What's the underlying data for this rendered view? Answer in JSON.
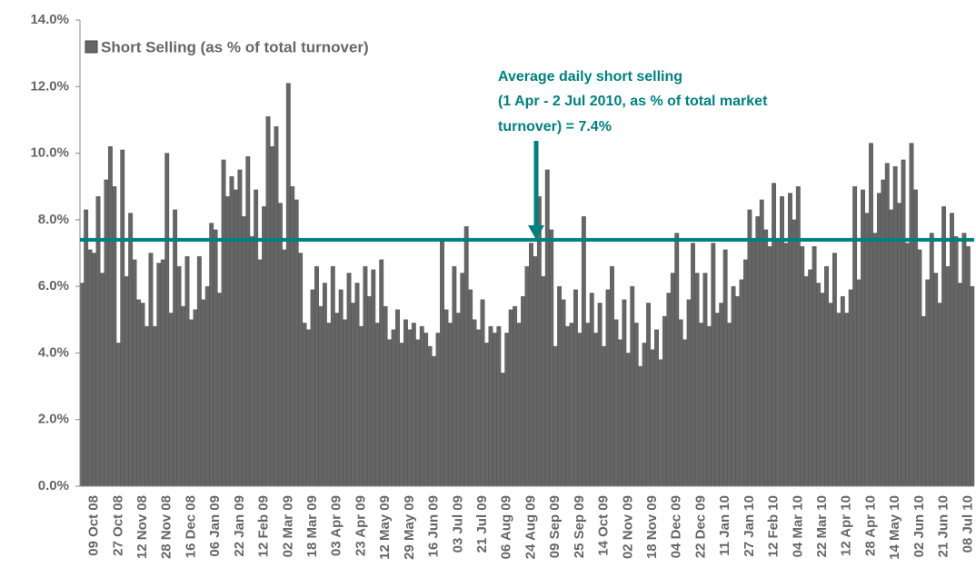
{
  "chart_data": {
    "type": "bar",
    "legend": "Short Selling (as % of total turnover)",
    "color": "#666666",
    "annotation": [
      "Average daily short selling",
      "(1 Apr - 2 Jul 2010, as % of total market",
      "turnover) = 7.4%"
    ],
    "average": 7.4,
    "average_color": "#008080",
    "ylim": [
      0,
      14
    ],
    "yticks": [
      {
        "value": 0,
        "label": "0.0%"
      },
      {
        "value": 2,
        "label": "2.0%"
      },
      {
        "value": 4,
        "label": "4.0%"
      },
      {
        "value": 6,
        "label": "6.0%"
      },
      {
        "value": 8,
        "label": "8.0%"
      },
      {
        "value": 10,
        "label": "10.0%"
      },
      {
        "value": 12,
        "label": "12.0%"
      },
      {
        "value": 14,
        "label": "14.0%"
      }
    ],
    "categories": [
      null,
      null,
      null,
      "09 Oct 08",
      null,
      null,
      null,
      null,
      null,
      "27 Oct 08",
      null,
      null,
      null,
      null,
      null,
      "12 Nov 08",
      null,
      null,
      null,
      null,
      null,
      "28 Nov 08",
      null,
      null,
      null,
      null,
      null,
      "16 Dec 08",
      null,
      null,
      null,
      null,
      null,
      "06 Jan 09",
      null,
      null,
      null,
      null,
      null,
      "22 Jan 09",
      null,
      null,
      null,
      null,
      null,
      "12 Feb 09",
      null,
      null,
      null,
      null,
      null,
      "02 Mar 09",
      null,
      null,
      null,
      null,
      null,
      "18 Mar 09",
      null,
      null,
      null,
      null,
      null,
      "03 Apr 09",
      null,
      null,
      null,
      null,
      null,
      "23 Apr 09",
      null,
      null,
      null,
      null,
      null,
      "12 May 09",
      null,
      null,
      null,
      null,
      null,
      "29 May 09",
      null,
      null,
      null,
      null,
      null,
      "16 Jun 09",
      null,
      null,
      null,
      null,
      null,
      "03 Jul 09",
      null,
      null,
      null,
      null,
      null,
      "21 Jul 09",
      null,
      null,
      null,
      null,
      null,
      "06 Aug 09",
      null,
      null,
      null,
      null,
      null,
      "24 Aug 09",
      null,
      null,
      null,
      null,
      null,
      "09 Sep 09",
      null,
      null,
      null,
      null,
      null,
      "25 Sep 09",
      null,
      null,
      null,
      null,
      null,
      "14 Oct 09",
      null,
      null,
      null,
      null,
      null,
      "02 Nov 09",
      null,
      null,
      null,
      null,
      null,
      "18 Nov 09",
      null,
      null,
      null,
      null,
      null,
      "04 Dec 09",
      null,
      null,
      null,
      null,
      null,
      "22 Dec 09",
      null,
      null,
      null,
      null,
      null,
      "11 Jan 10",
      null,
      null,
      null,
      null,
      null,
      "27 Jan 10",
      null,
      null,
      null,
      null,
      null,
      "12 Feb 10",
      null,
      null,
      null,
      null,
      null,
      "04 Mar 10",
      null,
      null,
      null,
      null,
      null,
      "22 Mar 10",
      null,
      null,
      null,
      null,
      null,
      "12 Apr 10",
      null,
      null,
      null,
      null,
      null,
      "28 Apr 10",
      null,
      null,
      null,
      null,
      null,
      "14 May 10",
      null,
      null,
      null,
      null,
      null,
      "02 Jun 10",
      null,
      null,
      null,
      null,
      null,
      "21 Jun 10",
      null,
      null,
      null,
      null,
      null,
      "08 Jul 10",
      null
    ],
    "values": [
      6.1,
      8.3,
      7.1,
      7.0,
      8.7,
      6.4,
      9.2,
      10.2,
      9.0,
      4.3,
      10.1,
      6.3,
      8.2,
      6.8,
      5.6,
      5.5,
      4.8,
      7.0,
      4.8,
      6.7,
      6.8,
      10.0,
      5.2,
      8.3,
      6.6,
      5.4,
      6.9,
      5.0,
      5.3,
      6.9,
      5.6,
      6.0,
      7.9,
      7.7,
      5.8,
      9.8,
      8.7,
      9.3,
      8.9,
      9.5,
      8.1,
      9.9,
      7.5,
      8.9,
      6.8,
      8.4,
      11.1,
      10.2,
      10.8,
      8.5,
      7.1,
      12.1,
      9.0,
      8.6,
      7.0,
      4.9,
      4.7,
      5.9,
      6.6,
      5.4,
      6.1,
      4.9,
      6.6,
      5.2,
      5.9,
      5.0,
      6.4,
      5.5,
      6.1,
      4.8,
      6.6,
      5.7,
      6.5,
      4.9,
      6.8,
      5.4,
      4.4,
      4.7,
      5.3,
      4.3,
      5.0,
      4.7,
      4.9,
      4.4,
      4.8,
      4.6,
      4.2,
      3.9,
      4.6,
      7.4,
      5.3,
      4.9,
      6.6,
      5.2,
      6.4,
      7.8,
      5.9,
      5.0,
      4.7,
      5.6,
      4.3,
      4.8,
      4.6,
      4.8,
      3.4,
      4.6,
      5.3,
      5.4,
      4.9,
      5.7,
      6.6,
      7.3,
      6.9,
      8.7,
      6.3,
      9.5,
      7.7,
      4.2,
      6.0,
      5.6,
      4.8,
      4.9,
      5.9,
      4.6,
      8.1,
      4.9,
      5.8,
      4.6,
      5.5,
      4.2,
      5.9,
      6.6,
      5.0,
      4.4,
      5.6,
      4.0,
      6.0,
      4.9,
      3.6,
      4.3,
      5.5,
      4.1,
      4.7,
      3.8,
      5.1,
      5.8,
      6.4,
      7.6,
      5.0,
      4.4,
      5.6,
      7.3,
      6.4,
      4.9,
      6.4,
      4.8,
      7.3,
      5.2,
      5.5,
      7.1,
      4.9,
      6.0,
      5.7,
      6.2,
      6.8,
      8.3,
      7.4,
      8.1,
      8.6,
      7.7,
      7.2,
      9.1,
      7.4,
      8.7,
      7.3,
      8.8,
      8.0,
      9.0,
      7.2,
      6.3,
      6.5,
      7.2,
      6.1,
      5.8,
      6.6,
      5.5,
      7.0,
      5.2,
      5.7,
      5.2,
      5.9,
      9.0,
      6.2,
      8.9,
      8.2,
      10.3,
      7.6,
      8.8,
      9.2,
      9.7,
      8.3,
      9.6,
      8.5,
      9.8,
      7.3,
      10.3,
      8.9,
      7.1,
      5.1,
      6.2,
      7.6,
      6.4,
      5.5,
      8.4,
      6.6,
      8.2,
      7.5,
      6.1,
      7.6,
      7.2,
      6.0
    ]
  }
}
